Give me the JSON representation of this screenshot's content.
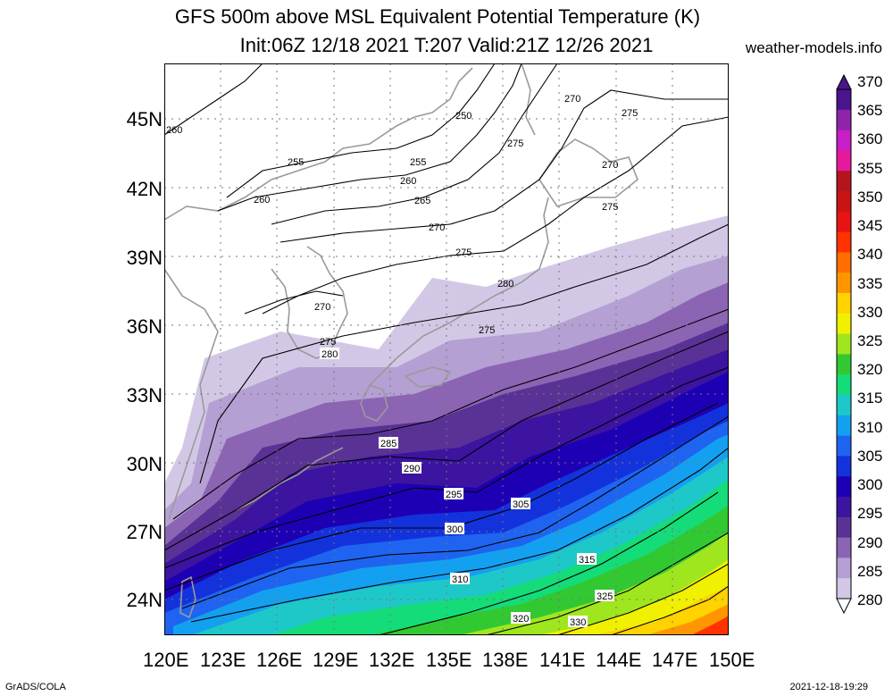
{
  "header": {
    "title_line1": "GFS 500m above MSL Equivalent Potential Temperature (K)",
    "title_line2": "Init:06Z 12/18 2021 T:207 Valid:21Z 12/26 2021",
    "site": "weather-models.info"
  },
  "footer": {
    "left": "GrADS/COLA",
    "right": "2021-12-18-19:29"
  },
  "map": {
    "lat_labels": [
      "45N",
      "42N",
      "39N",
      "36N",
      "33N",
      "30N",
      "27N",
      "24N"
    ],
    "lon_labels": [
      "120E",
      "123E",
      "126E",
      "129E",
      "132E",
      "135E",
      "138E",
      "141E",
      "144E",
      "147E",
      "150E"
    ],
    "contour_labels_black": [
      "260",
      "255",
      "255",
      "260",
      "260",
      "265",
      "270",
      "275",
      "250",
      "270",
      "275",
      "275",
      "270",
      "275",
      "270",
      "275",
      "280",
      "275"
    ],
    "contour_labels_boxed": [
      "280",
      "285",
      "290",
      "295",
      "300",
      "305",
      "310",
      "315",
      "320",
      "325",
      "330"
    ],
    "colorbar": {
      "labels": [
        "370",
        "365",
        "360",
        "355",
        "350",
        "345",
        "340",
        "335",
        "330",
        "325",
        "320",
        "315",
        "310",
        "305",
        "300",
        "295",
        "290",
        "285",
        "280"
      ],
      "colors": [
        "#4a148c",
        "#8e24aa",
        "#c81ec8",
        "#e6199c",
        "#b4141e",
        "#c81414",
        "#e61414",
        "#ff3200",
        "#ff6e00",
        "#ff9600",
        "#ffd200",
        "#f0f000",
        "#a0e61e",
        "#32c832",
        "#14dc78",
        "#1ec8c8",
        "#14a0f0",
        "#1e64f0",
        "#1432dc",
        "#1e00b4",
        "#3c14a0",
        "#5a3296",
        "#8c64b4",
        "#b4a0d2",
        "#d2c8e6"
      ]
    }
  }
}
